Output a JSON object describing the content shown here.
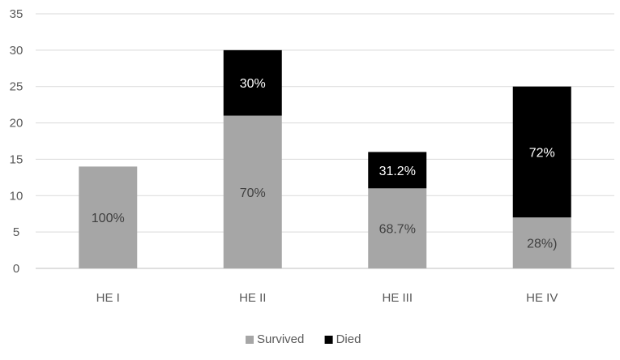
{
  "chart_data": {
    "type": "bar",
    "stacked": true,
    "categories": [
      "HE I",
      "HE II",
      "HE III",
      "HE IV"
    ],
    "series": [
      {
        "name": "Survived",
        "color": "#a6a6a6",
        "values": [
          14,
          21,
          11,
          7
        ],
        "labels": [
          "100%",
          "70%",
          "68.7%",
          "28%)"
        ]
      },
      {
        "name": "Died",
        "color": "#000000",
        "values": [
          0,
          9,
          5,
          18
        ],
        "labels": [
          "",
          "30%",
          "31.2%",
          "72%"
        ]
      }
    ],
    "ylim": [
      0,
      35
    ],
    "yticks": [
      0,
      5,
      10,
      15,
      20,
      25,
      30,
      35
    ],
    "grid": true,
    "legend": "bottom-center"
  }
}
